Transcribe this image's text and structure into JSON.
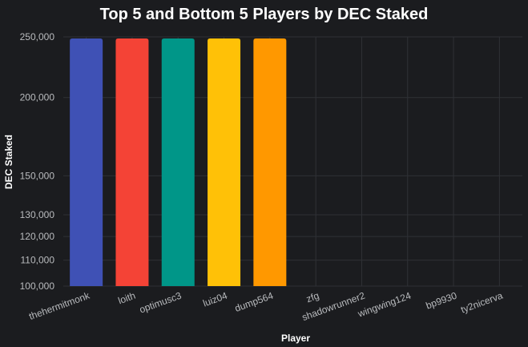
{
  "chart_data": {
    "type": "bar",
    "title": "Top 5 and Bottom 5 Players by DEC Staked",
    "xlabel": "Player",
    "ylabel": "DEC Staked",
    "y_scale": "log",
    "ylim": [
      100000,
      250000
    ],
    "yticks": [
      100000,
      110000,
      120000,
      130000,
      150000,
      200000,
      250000
    ],
    "ytick_labels": [
      "100,000",
      "110,000",
      "120,000",
      "130,000",
      "150,000",
      "200,000",
      "250,000"
    ],
    "grid": true,
    "categories": [
      "thehermitmonk",
      "loith",
      "optimusc3",
      "luiz04",
      "dump564",
      "zfg",
      "shadowrunner2",
      "wingwing124",
      "bp9930",
      "ty2nicerva"
    ],
    "values": [
      250000,
      250000,
      250000,
      250000,
      250000,
      0,
      0,
      0,
      0,
      0
    ],
    "colors": [
      "#3f51b5",
      "#f44336",
      "#009688",
      "#ffc107",
      "#ff9800",
      "#795548",
      "#607d8b",
      "#9c27b0",
      "#e91e63",
      "#8bc34a"
    ]
  }
}
